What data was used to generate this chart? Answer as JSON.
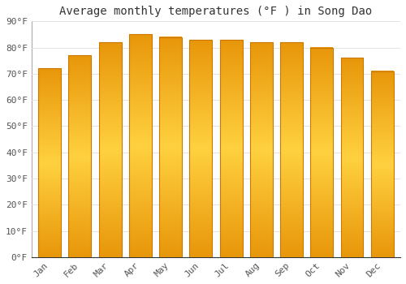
{
  "title": "Average monthly temperatures (°F ) in Song Dao",
  "months": [
    "Jan",
    "Feb",
    "Mar",
    "Apr",
    "May",
    "Jun",
    "Jul",
    "Aug",
    "Sep",
    "Oct",
    "Nov",
    "Dec"
  ],
  "values": [
    72,
    77,
    82,
    85,
    84,
    83,
    83,
    82,
    82,
    80,
    76,
    71
  ],
  "bar_color_face": "#FFA500",
  "bar_color_edge": "#CC7700",
  "background_color": "#FFFFFF",
  "plot_bg_color": "#FFFFFF",
  "grid_color": "#DDDDDD",
  "ylim": [
    0,
    90
  ],
  "yticks": [
    0,
    10,
    20,
    30,
    40,
    50,
    60,
    70,
    80,
    90
  ],
  "ytick_labels": [
    "0°F",
    "10°F",
    "20°F",
    "30°F",
    "40°F",
    "50°F",
    "60°F",
    "70°F",
    "80°F",
    "90°F"
  ],
  "title_fontsize": 10,
  "tick_fontsize": 8,
  "xlabel_rotation": 45,
  "bar_width": 0.75,
  "figsize": [
    5.0,
    3.5
  ],
  "dpi": 100
}
